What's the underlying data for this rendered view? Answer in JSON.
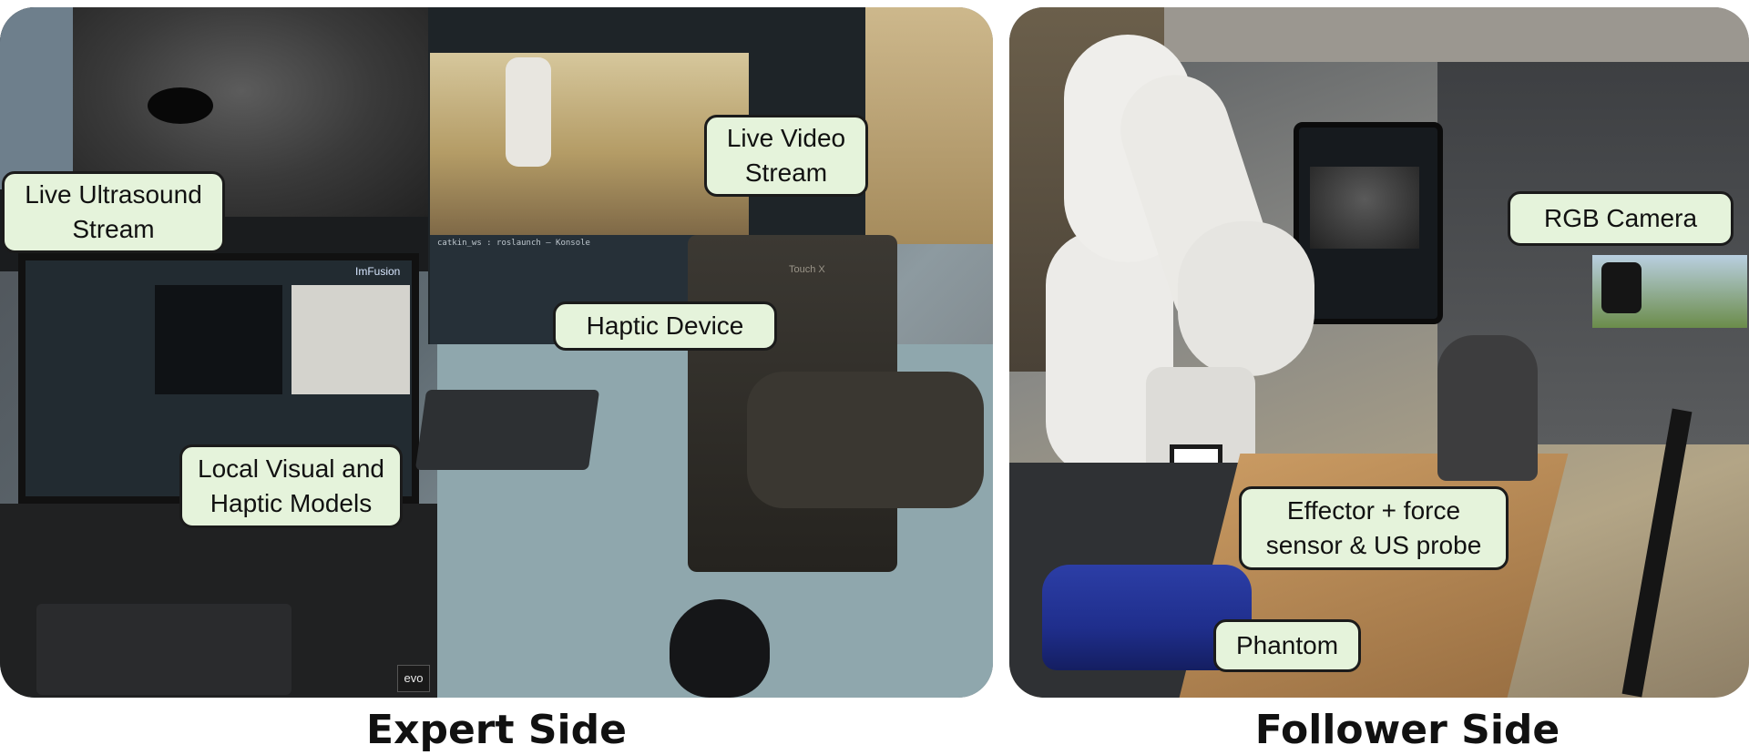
{
  "figure": {
    "expert_caption": "Expert Side",
    "follower_caption": "Follower Side"
  },
  "expert_panel": {
    "callouts": {
      "ultrasound": "Live Ultrasound\nStream",
      "video": "Live Video\nStream",
      "haptic_device": "Haptic Device",
      "local_models": "Local Visual and\nHaptic Models"
    },
    "laptop_brand": "ImFusion",
    "laptop_sticker": "evo",
    "touch_label": "Touch X",
    "terminal_title": "catkin_ws : roslaunch — Konsole"
  },
  "follower_panel": {
    "callouts": {
      "rgb_camera": "RGB Camera",
      "effector": "Effector + force\nsensor & US probe",
      "phantom": "Phantom"
    }
  },
  "colors": {
    "callout_fill": "#e5f3db",
    "callout_border": "#1b1b1b",
    "phantom_blue": "#1f2e8c",
    "robot_white": "#ecebe8"
  }
}
